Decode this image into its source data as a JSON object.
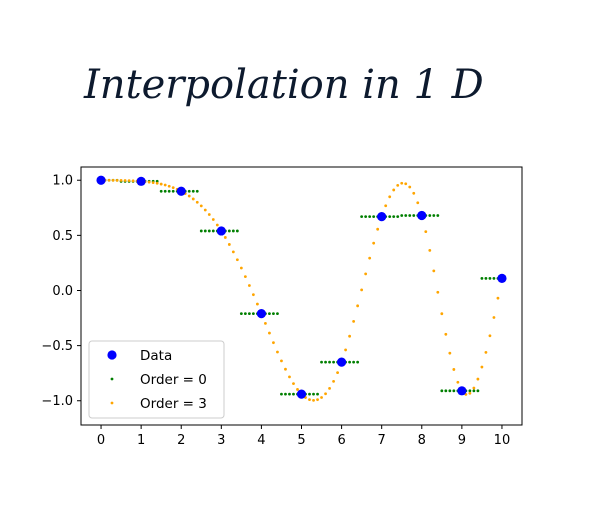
{
  "title": "Interpolation in 1 D",
  "chart_data": {
    "type": "scatter",
    "title": "Interpolation in 1 D",
    "xlabel": "",
    "ylabel": "",
    "xlim": [
      -0.5,
      10.5
    ],
    "ylim": [
      -1.22,
      1.12
    ],
    "xticks": [
      0,
      1,
      2,
      3,
      4,
      5,
      6,
      7,
      8,
      9,
      10
    ],
    "yticks": [
      1.0,
      0.5,
      0.0,
      -0.5,
      -1.0
    ],
    "ytick_labels": [
      "1.0",
      "0.5",
      "0.0",
      "−0.5",
      "−1.0"
    ],
    "grid": false,
    "legend_position": "lower-left",
    "series": [
      {
        "name": "Data",
        "marker": "circle",
        "color": "#0000ff",
        "x": [
          0,
          1,
          2,
          3,
          4,
          5,
          6,
          7,
          8,
          9,
          10
        ],
        "values": [
          1.0,
          0.99,
          0.9,
          0.54,
          -0.21,
          -0.94,
          -0.65,
          0.67,
          0.68,
          -0.91,
          0.11
        ]
      },
      {
        "name": "Order = 0",
        "marker": "dot",
        "color": "#007f00",
        "interpolation": "nearest",
        "sample_step": 0.1
      },
      {
        "name": "Order = 3",
        "marker": "dot",
        "color": "#ffa500",
        "interpolation": "cubic",
        "sample_step": 0.1
      }
    ]
  }
}
